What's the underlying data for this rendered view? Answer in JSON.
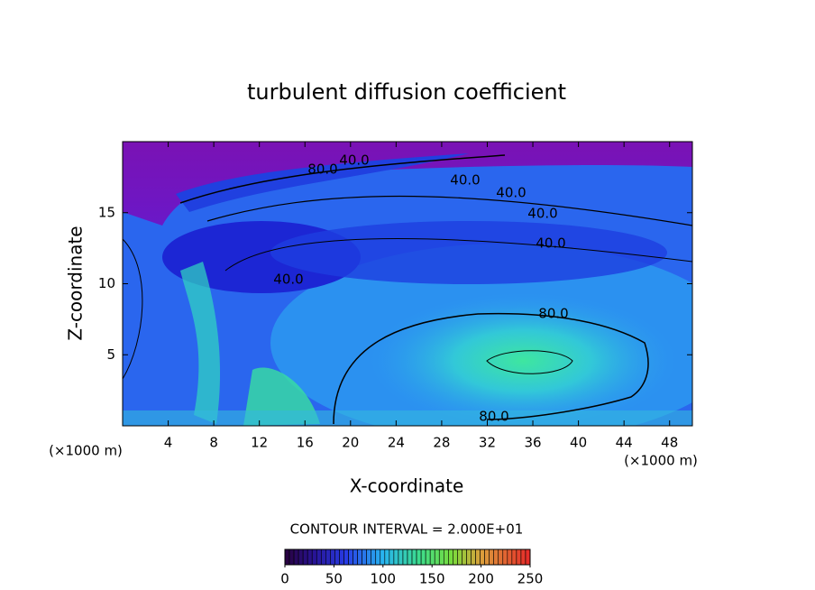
{
  "chart_data": {
    "type": "contour",
    "title": "turbulent diffusion coefficient",
    "x_label": "X-coordinate",
    "y_label": "Z-coordinate",
    "x_unit_label": "(×1000 m)",
    "y_unit_label": "(×1000 m)",
    "xlim": [
      0,
      50
    ],
    "xticks": [
      4,
      8,
      12,
      16,
      20,
      24,
      28,
      32,
      36,
      40,
      44,
      48
    ],
    "ylim": [
      0,
      20
    ],
    "yticks": [
      5,
      10,
      15
    ],
    "contour_labels": [
      "80.0",
      "40.0",
      "40.0",
      "40.0",
      "40.0",
      "40.0",
      "40.0",
      "80.0",
      "80.0"
    ],
    "contour_interval_text": "CONTOUR INTERVAL = 2.000E+01",
    "colorbar_lim": [
      0,
      250
    ],
    "colorbar_ticks": [
      0,
      50,
      100,
      150,
      200,
      250
    ]
  }
}
